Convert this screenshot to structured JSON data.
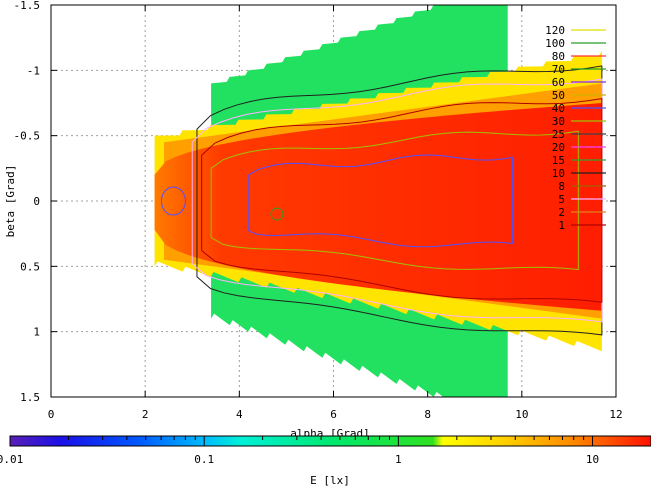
{
  "chart_data": {
    "type": "heatmap",
    "title": "",
    "xlabel": "alpha [Grad]",
    "ylabel": "beta [Grad]",
    "xlim": [
      0,
      12
    ],
    "ylim": [
      -1.5,
      1.5
    ],
    "y_axis_inverted": true,
    "x_ticks": [
      "0",
      "2",
      "4",
      "6",
      "8",
      "10",
      "12"
    ],
    "x_tick_values": [
      0,
      2,
      4,
      6,
      8,
      10,
      12
    ],
    "y_ticks": [
      "-1.5",
      "-1",
      "-0.5",
      "0",
      "0.5",
      "1",
      "1.5"
    ],
    "y_tick_values": [
      -1.5,
      -1,
      -0.5,
      0,
      0.5,
      1,
      1.5
    ],
    "grid": true,
    "legend_position": "top-right",
    "contour_levels": [
      "120",
      "100",
      "80",
      "70",
      "60",
      "50",
      "40",
      "30",
      "25",
      "20",
      "15",
      "10",
      "8",
      "5",
      "2",
      "1"
    ],
    "contour_colors": [
      "#e0e000",
      "#2aa02a",
      "#ff3030",
      "#20a020",
      "#8a2be2",
      "#d2b000",
      "#5050ff",
      "#a0c000",
      "#404040",
      "#ff40ff",
      "#30a030",
      "#202020",
      "#a06000",
      "#ffb0ff",
      "#e08020",
      "#b00000"
    ],
    "colorbar": {
      "label": "E [lx]",
      "scale": "log",
      "range": [
        0.01,
        20
      ],
      "ticks": [
        "0.01",
        "0.1",
        "1",
        "10"
      ],
      "tick_values": [
        0.01,
        0.1,
        1,
        10
      ]
    },
    "region": {
      "alpha_start": 2.2,
      "alpha_end": 11.7,
      "beta_half_width_start": 0.5,
      "beta_half_width_end": 1.5,
      "core_value_lx": 15
    }
  }
}
